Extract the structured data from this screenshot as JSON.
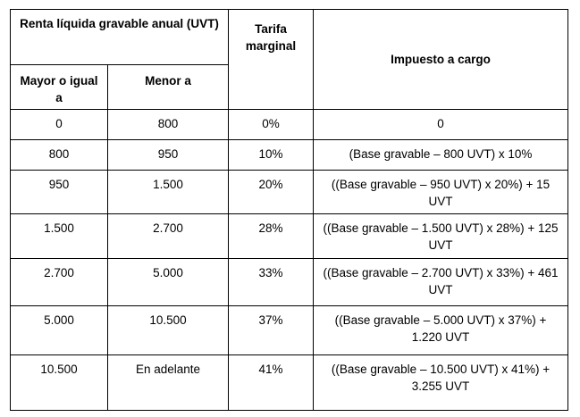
{
  "table": {
    "header": {
      "group_label": "Renta líquida gravable anual (UVT)",
      "col_min": "Mayor o igual a",
      "col_max": "Menor a",
      "col_rate": "Tarifa marginal",
      "col_tax": "Impuesto a cargo"
    },
    "rows": [
      {
        "min": "0",
        "max": "800",
        "rate": "0%",
        "tax": "0"
      },
      {
        "min": "800",
        "max": "950",
        "rate": "10%",
        "tax": "(Base gravable – 800 UVT) x 10%"
      },
      {
        "min": "950",
        "max": "1.500",
        "rate": "20%",
        "tax": "((Base gravable – 950 UVT) x 20%) + 15 UVT"
      },
      {
        "min": "1.500",
        "max": "2.700",
        "rate": "28%",
        "tax": "((Base gravable – 1.500 UVT) x 28%) + 125 UVT"
      },
      {
        "min": "2.700",
        "max": "5.000",
        "rate": "33%",
        "tax": "((Base gravable – 2.700 UVT) x 33%) + 461 UVT"
      },
      {
        "min": "5.000",
        "max": "10.500",
        "rate": "37%",
        "tax": "((Base gravable – 5.000 UVT) x 37%) + 1.220 UVT"
      },
      {
        "min": "10.500",
        "max": "En adelante",
        "rate": "41%",
        "tax": "((Base gravable – 10.500 UVT) x 41%) + 3.255 UVT"
      }
    ]
  }
}
